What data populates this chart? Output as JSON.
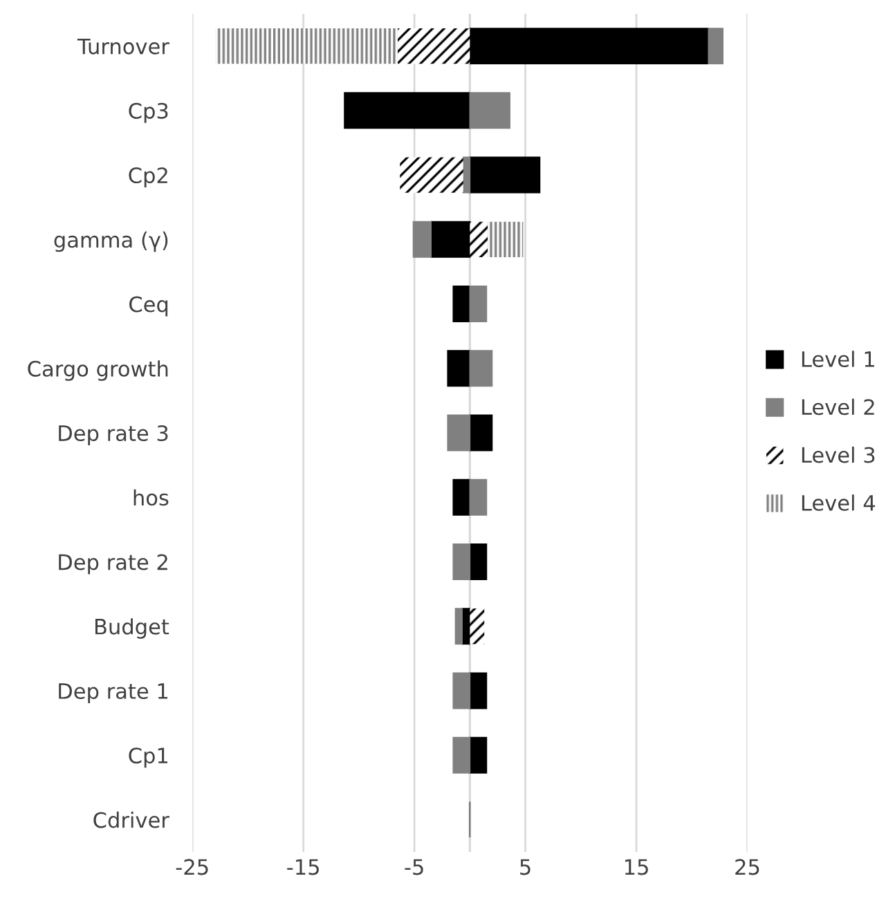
{
  "chart_data": {
    "type": "bar",
    "orientation": "horizontal",
    "stacked": true,
    "categories": [
      "Turnover",
      "Cp3",
      "Cp2",
      "gamma (γ)",
      "Ceq",
      "Cargo growth",
      "Dep rate 3",
      "hos",
      "Dep rate 2",
      "Budget",
      "Dep rate 1",
      "Cp1",
      "Cdriver"
    ],
    "series": [
      {
        "name": "Level 1",
        "color": "#000000",
        "values": [
          21.5,
          -11.3,
          6.3,
          -3.5,
          -1.5,
          -2.0,
          2.0,
          -1.5,
          1.5,
          -0.7,
          1.5,
          1.5,
          0
        ]
      },
      {
        "name": "Level 2",
        "color": "#808080",
        "values": [
          1.3,
          3.6,
          -0.6,
          -1.6,
          1.5,
          2.0,
          -2.0,
          1.5,
          -1.5,
          -0.6,
          -1.5,
          -1.5,
          0
        ]
      },
      {
        "name": "Level 3",
        "color": "#000000",
        "values": [
          -6.5,
          0,
          -5.7,
          1.6,
          0,
          0,
          0,
          0,
          0,
          1.3,
          0,
          0,
          0
        ]
      },
      {
        "name": "Level 4",
        "color": "#808080",
        "values": [
          -16.4,
          0,
          0,
          3.2,
          0,
          0,
          0,
          0,
          0,
          0,
          0,
          0,
          0
        ]
      }
    ],
    "xlim": [
      -25,
      25
    ],
    "xticks": [
      -25,
      -15,
      -5,
      5,
      15,
      25
    ],
    "grid": "x",
    "legend": "right"
  }
}
